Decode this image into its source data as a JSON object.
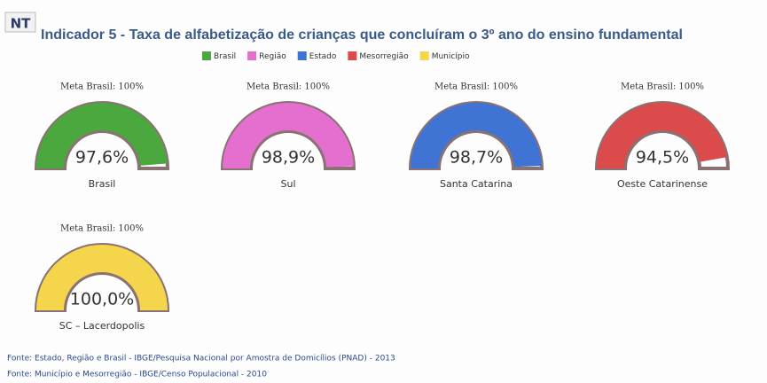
{
  "chart_data": {
    "type": "gauge",
    "logo": "NT",
    "title": "Indicador 5 - Taxa de alfabetização de crianças que concluíram o 3º ano do ensino fundamental",
    "legend": [
      "Brasil",
      "Região",
      "Estado",
      "Mesorregião",
      "Município"
    ],
    "colors": [
      "#4aa83f",
      "#e46fcf",
      "#3f73d4",
      "#dc4b4b",
      "#f4d54c"
    ],
    "target_label": "Meta Brasil: 100%",
    "ylim": [
      0,
      100
    ],
    "categories": [
      "Brasil",
      "Sul",
      "Santa Catarina",
      "Oeste Catarinense",
      "SC – Lacerdopolis"
    ],
    "values": [
      97.6,
      98.9,
      98.7,
      94.5,
      100.0
    ],
    "value_labels": [
      "97,6%",
      "98,9%",
      "98,7%",
      "94,5%",
      "100,0%"
    ],
    "notes": [
      "Fonte: Estado, Região e Brasil - IBGE/Pesquisa Nacional por Amostra de Domicílios (PNAD) - 2013",
      "Fonte: Município e Mesorregião - IBGE/Censo Populacional - 2010"
    ]
  }
}
